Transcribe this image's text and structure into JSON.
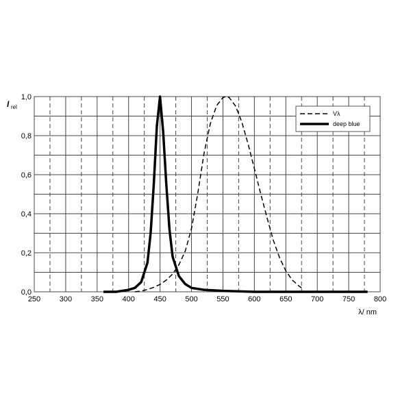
{
  "chart_data": {
    "type": "line",
    "ylabel": "I",
    "ylabel_sub": "rel",
    "xlabel": "λ/ nm",
    "xlim": [
      250,
      800
    ],
    "ylim": [
      0,
      1
    ],
    "xticks": [
      250,
      300,
      350,
      400,
      450,
      500,
      550,
      600,
      650,
      700,
      750,
      800
    ],
    "xminor": [
      275,
      325,
      375,
      425,
      475,
      525,
      575,
      625,
      675,
      725,
      775
    ],
    "yticks": [
      {
        "value": 0,
        "label": "0,0"
      },
      {
        "value": 0.2,
        "label": "0,2"
      },
      {
        "value": 0.4,
        "label": "0,4"
      },
      {
        "value": 0.6,
        "label": "0,6"
      },
      {
        "value": 0.8,
        "label": "0,8"
      },
      {
        "value": 1,
        "label": "1,0"
      }
    ],
    "yminor": [
      0.1,
      0.3,
      0.5,
      0.7,
      0.9
    ],
    "grid": true,
    "legend": "upper right",
    "series": [
      {
        "name": "Vλ",
        "color": "#000000",
        "dashed": true,
        "x": [
          410,
          420,
          430,
          440,
          450,
          460,
          470,
          480,
          490,
          500,
          510,
          520,
          530,
          540,
          550,
          555,
          560,
          570,
          580,
          590,
          600,
          610,
          620,
          630,
          640,
          650,
          660,
          670,
          675
        ],
        "values": [
          0.0,
          0.004,
          0.012,
          0.023,
          0.038,
          0.06,
          0.091,
          0.139,
          0.208,
          0.323,
          0.503,
          0.71,
          0.862,
          0.954,
          0.995,
          1.0,
          0.995,
          0.952,
          0.87,
          0.757,
          0.631,
          0.503,
          0.381,
          0.265,
          0.175,
          0.107,
          0.061,
          0.032,
          0.02
        ]
      },
      {
        "name": "deep blue",
        "color": "#000000",
        "dashed": false,
        "x": [
          360,
          380,
          400,
          410,
          420,
          430,
          435,
          440,
          445,
          450,
          455,
          460,
          465,
          470,
          480,
          490,
          500,
          520,
          550,
          600,
          650,
          700,
          750,
          780
        ],
        "values": [
          0.0,
          0.0,
          0.01,
          0.02,
          0.05,
          0.15,
          0.3,
          0.55,
          0.85,
          1.0,
          0.82,
          0.55,
          0.32,
          0.18,
          0.08,
          0.04,
          0.02,
          0.01,
          0.005,
          0.0,
          0.0,
          0.0,
          0.0,
          0.0
        ]
      }
    ]
  }
}
